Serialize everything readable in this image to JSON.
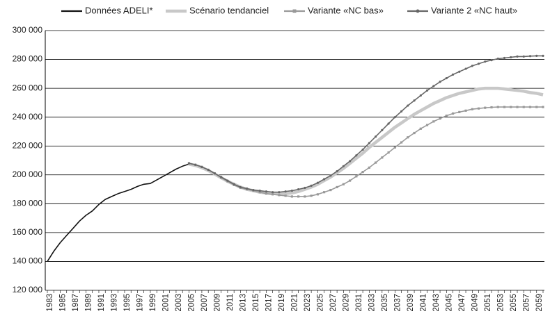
{
  "chart_data": {
    "type": "line",
    "legend": "top",
    "grid": true,
    "categories": [
      "1983",
      null,
      "1985",
      null,
      "1987",
      null,
      "1989",
      null,
      "1991",
      null,
      "1993",
      null,
      "1995",
      null,
      "1997",
      null,
      "1999",
      null,
      "2001",
      null,
      "2003",
      null,
      "2005",
      null,
      "2007",
      null,
      "2009",
      null,
      "2011",
      null,
      "2013",
      null,
      "2015",
      null,
      "2017",
      null,
      "2019",
      null,
      "2021",
      null,
      "2023",
      null,
      "2025",
      null,
      "2027",
      null,
      "2029",
      null,
      "2031",
      null,
      "2033",
      null,
      "2035",
      null,
      "2037",
      null,
      "2039",
      null,
      "2041",
      null,
      "2043",
      null,
      "2045",
      null,
      "2047",
      null,
      "2049",
      null,
      "2051",
      null,
      "2053",
      null,
      "2055",
      null,
      "2057",
      null,
      "2059",
      null
    ],
    "ylim": [
      120000,
      300000
    ],
    "yticks": [
      {
        "value": 120000,
        "label": "120 000"
      },
      {
        "value": 140000,
        "label": "140 000"
      },
      {
        "value": 160000,
        "label": "160 000"
      },
      {
        "value": 180000,
        "label": "180 000"
      },
      {
        "value": 200000,
        "label": "200 000"
      },
      {
        "value": 220000,
        "label": "220 000"
      },
      {
        "value": 240000,
        "label": "240 000"
      },
      {
        "value": 260000,
        "label": "260 000"
      },
      {
        "value": 280000,
        "label": "280 000"
      },
      {
        "value": 300000,
        "label": "300 000"
      }
    ],
    "series": [
      {
        "name": "Données ADELI*",
        "color": "#111111",
        "values": [
          140000,
          147000,
          153000,
          158000,
          163000,
          168000,
          172000,
          175000,
          179500,
          183000,
          185000,
          187000,
          188500,
          190000,
          192000,
          193500,
          194000,
          196500,
          199000,
          201500,
          204000,
          206000,
          207500,
          null,
          null,
          null,
          null,
          null,
          null,
          null,
          null,
          null,
          null,
          null,
          null,
          null,
          null,
          null,
          null,
          null,
          null,
          null,
          null,
          null,
          null,
          null,
          null,
          null,
          null,
          null,
          null,
          null,
          null,
          null,
          null,
          null,
          null,
          null,
          null,
          null,
          null,
          null,
          null,
          null,
          null,
          null,
          null,
          null,
          null,
          null,
          null,
          null,
          null,
          null,
          null,
          null,
          null,
          null
        ]
      },
      {
        "name": "Scénario tendanciel",
        "color": "#c8c8c8",
        "values": [
          null,
          null,
          null,
          null,
          null,
          null,
          null,
          null,
          null,
          null,
          null,
          null,
          null,
          null,
          null,
          null,
          null,
          null,
          null,
          null,
          null,
          null,
          207500,
          206500,
          205000,
          203000,
          200500,
          198000,
          195500,
          193500,
          191500,
          190000,
          189000,
          188000,
          187500,
          187000,
          187000,
          187000,
          187500,
          188500,
          190000,
          191500,
          193500,
          196000,
          198500,
          201500,
          204500,
          208000,
          211500,
          215000,
          219000,
          222500,
          226000,
          229500,
          233000,
          236000,
          239000,
          242000,
          244500,
          247000,
          249500,
          251500,
          253500,
          255000,
          256500,
          257500,
          258500,
          259500,
          260000,
          260000,
          260000,
          259500,
          259000,
          258500,
          258000,
          257000,
          256500,
          255500
        ]
      },
      {
        "name": "Variante «NC bas»",
        "color": "#999999",
        "values": [
          null,
          null,
          null,
          null,
          null,
          null,
          null,
          null,
          null,
          null,
          null,
          null,
          null,
          null,
          null,
          null,
          null,
          null,
          null,
          null,
          null,
          null,
          208000,
          207000,
          205500,
          203500,
          201000,
          198000,
          195500,
          193000,
          191000,
          190000,
          189000,
          188000,
          187000,
          186500,
          186000,
          185500,
          185000,
          185000,
          185000,
          185500,
          186500,
          188000,
          189500,
          191500,
          193500,
          196000,
          199000,
          202000,
          205000,
          208500,
          212000,
          215500,
          219000,
          222500,
          226000,
          229000,
          232000,
          234500,
          237000,
          239000,
          241000,
          242500,
          243500,
          244500,
          245500,
          246000,
          246500,
          246800,
          247000,
          247000,
          247000,
          247000,
          247000,
          247000,
          247000,
          247000
        ]
      },
      {
        "name": "Variante 2  «NC haut»",
        "color": "#666666",
        "values": [
          null,
          null,
          null,
          null,
          null,
          null,
          null,
          null,
          null,
          null,
          null,
          null,
          null,
          null,
          null,
          null,
          null,
          null,
          null,
          null,
          null,
          null,
          208000,
          207000,
          205500,
          203500,
          201000,
          198500,
          196000,
          193500,
          191500,
          190500,
          189500,
          189000,
          188500,
          188000,
          188000,
          188500,
          189000,
          190000,
          191000,
          192500,
          194500,
          197000,
          199500,
          202500,
          206000,
          209500,
          213500,
          217500,
          222000,
          226500,
          231000,
          235500,
          240000,
          244000,
          248000,
          251500,
          255000,
          258500,
          261500,
          264500,
          267000,
          269500,
          271500,
          273500,
          275500,
          277000,
          278500,
          279500,
          280500,
          281000,
          281500,
          282000,
          282000,
          282300,
          282500,
          282500
        ]
      }
    ]
  }
}
